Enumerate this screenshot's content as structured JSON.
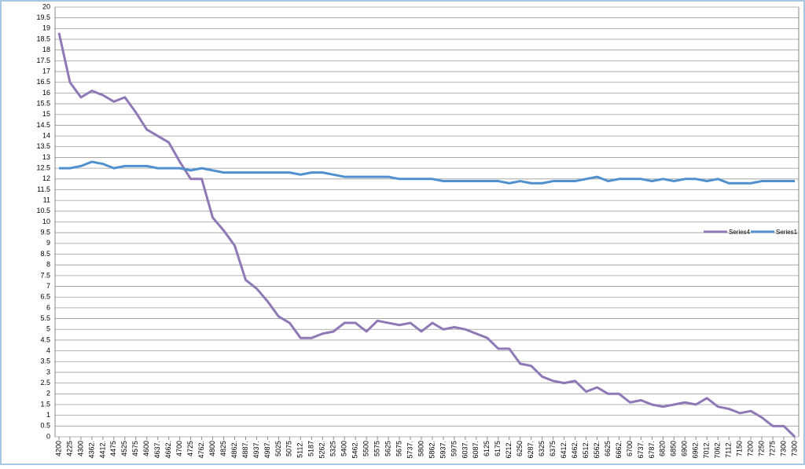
{
  "chart_data": {
    "type": "line",
    "categories": [
      "4200",
      "4225",
      "4300",
      "4362.",
      "4412.",
      "4475",
      "4525",
      "4575",
      "4600",
      "4637.",
      "4662.",
      "4700",
      "4725",
      "4762.",
      "4800",
      "4825",
      "4862.",
      "4887.",
      "4937.",
      "4987.",
      "5025",
      "5075",
      "5112.",
      "5187",
      "5262.",
      "5325",
      "5400",
      "5462.",
      "5500",
      "5575",
      "5625",
      "5675",
      "5737.",
      "5800",
      "5862.",
      "5937.",
      "5975",
      "6037.",
      "6087.",
      "6125",
      "6175",
      "6212.",
      "6250",
      "6287.",
      "6325",
      "6375",
      "6412.",
      "6462.",
      "6512.",
      "6562.",
      "6625",
      "6662.",
      "6700",
      "6737.",
      "6787.",
      "6820",
      "6850",
      "6900",
      "6962.",
      "7012.",
      "7062.",
      "7112.",
      "7150",
      "7200",
      "7250",
      "7275",
      "7300",
      "7300"
    ],
    "series": [
      {
        "name": "Series4",
        "color": "#8f78b6",
        "values": [
          18.8,
          16.5,
          15.8,
          16.1,
          15.9,
          15.6,
          15.8,
          15.1,
          14.3,
          14.0,
          13.7,
          12.8,
          12.0,
          12.0,
          10.2,
          9.6,
          8.9,
          7.3,
          6.9,
          6.3,
          5.6,
          5.3,
          4.6,
          4.6,
          4.8,
          4.9,
          5.3,
          5.3,
          4.9,
          5.4,
          5.3,
          5.2,
          5.3,
          4.9,
          5.3,
          5.0,
          5.1,
          5.0,
          4.8,
          4.6,
          4.1,
          4.1,
          3.4,
          3.3,
          2.8,
          2.6,
          2.5,
          2.6,
          2.1,
          2.3,
          2.0,
          2.0,
          1.6,
          1.7,
          1.5,
          1.4,
          1.5,
          1.6,
          1.5,
          1.8,
          1.4,
          1.3,
          1.1,
          1.2,
          0.9,
          0.5,
          0.5,
          0
        ]
      },
      {
        "name": "Series1",
        "color": "#5090cf",
        "values": [
          12.5,
          12.5,
          12.6,
          12.8,
          12.7,
          12.5,
          12.6,
          12.6,
          12.6,
          12.5,
          12.5,
          12.5,
          12.4,
          12.5,
          12.4,
          12.3,
          12.3,
          12.3,
          12.3,
          12.3,
          12.3,
          12.3,
          12.2,
          12.3,
          12.3,
          12.2,
          12.1,
          12.1,
          12.1,
          12.1,
          12.1,
          12.0,
          12.0,
          12.0,
          12.0,
          11.9,
          11.9,
          11.9,
          11.9,
          11.9,
          11.9,
          11.8,
          11.9,
          11.8,
          11.8,
          11.9,
          11.9,
          11.9,
          12.0,
          12.1,
          11.9,
          12.0,
          12.0,
          12.0,
          11.9,
          12.0,
          11.9,
          12.0,
          12.0,
          11.9,
          12.0,
          11.8,
          11.8,
          11.8,
          11.9,
          11.9,
          11.9,
          11.9
        ]
      }
    ],
    "ylim": [
      0,
      20
    ],
    "yticks": [
      0,
      0.5,
      1,
      1.5,
      2,
      2.5,
      3,
      3.5,
      4,
      4.5,
      5,
      5.5,
      6,
      6.5,
      7,
      7.5,
      8,
      8.5,
      9,
      9.5,
      10,
      10.5,
      11,
      11.5,
      12,
      12.5,
      13,
      13.5,
      14,
      14.5,
      15,
      15.5,
      16,
      16.5,
      17,
      17.5,
      18,
      18.5,
      19,
      19.5,
      20
    ],
    "grid": true,
    "legend": "right"
  }
}
